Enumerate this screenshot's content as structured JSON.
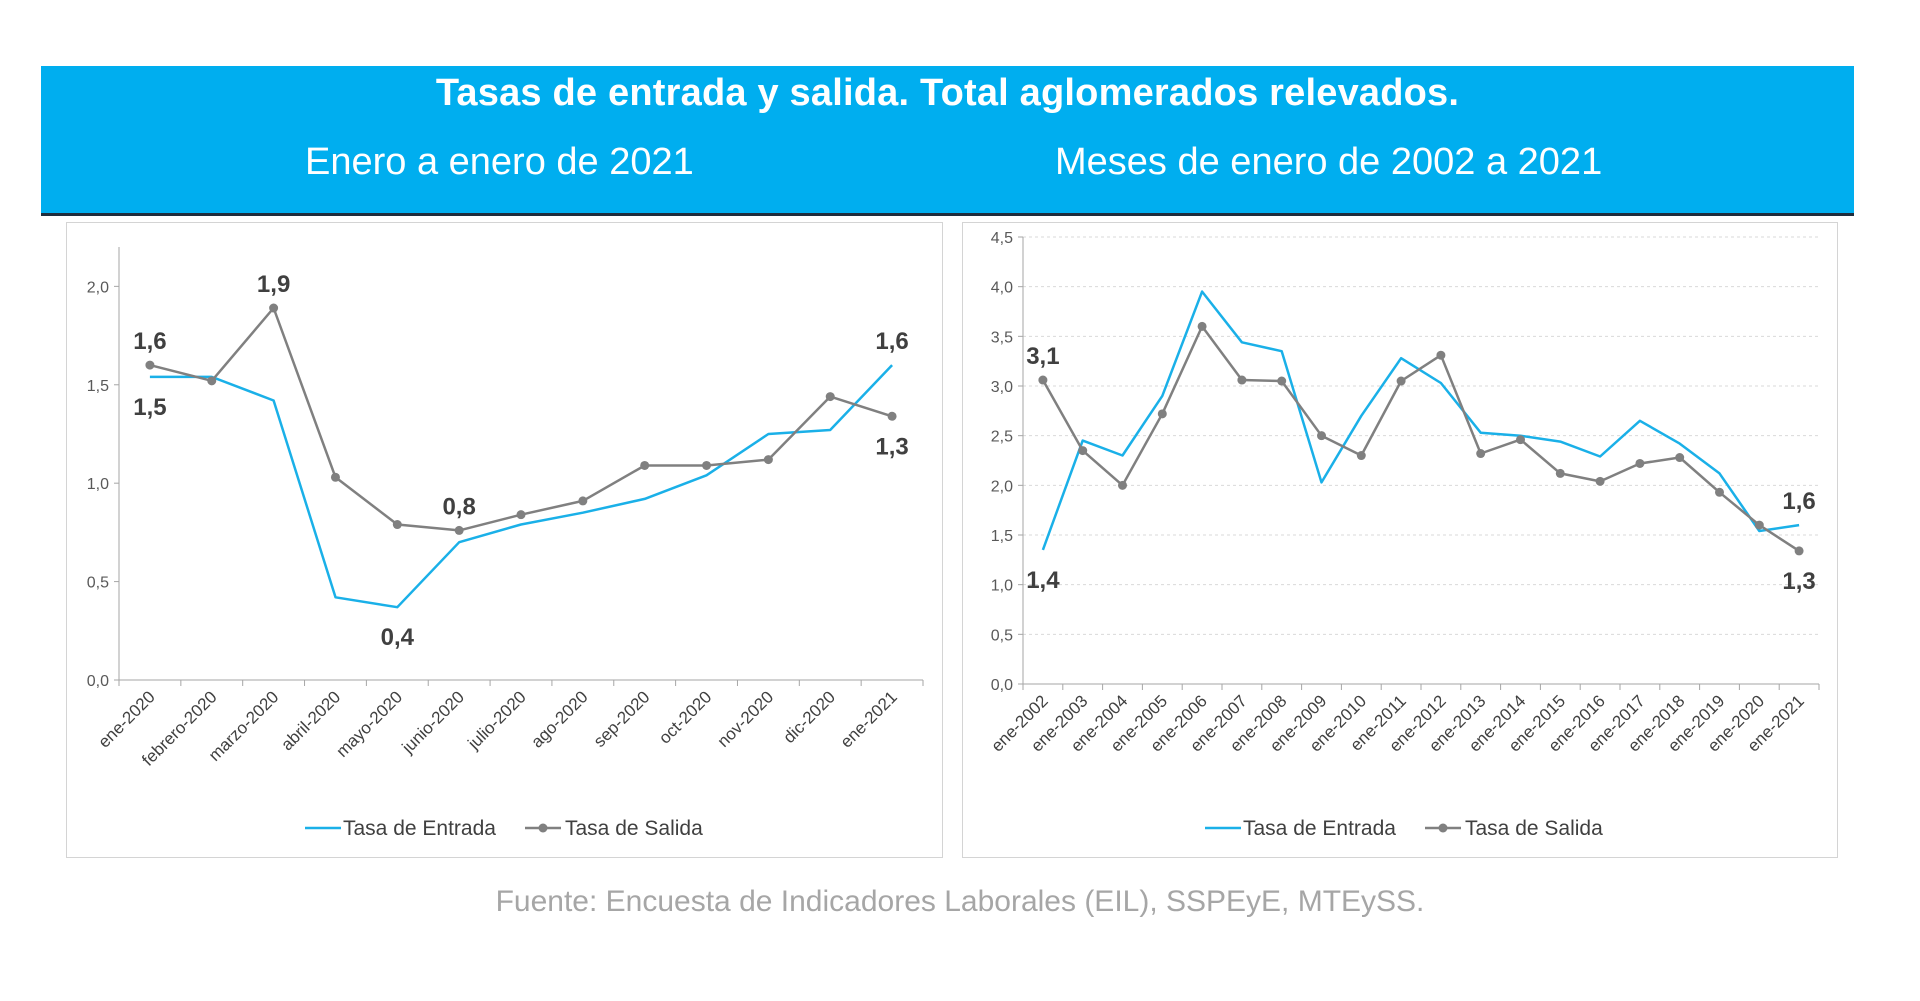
{
  "header": {
    "title": "Tasas de entrada y salida. Total aglomerados relevados.",
    "subtitle_left": "Enero a enero de 2021",
    "subtitle_right": "Meses de enero de 2002 a 2021"
  },
  "source": "Fuente: Encuesta de Indicadores Laborales (EIL), SSPEyE, MTEySS.",
  "colors": {
    "banner": "#00aeef",
    "entrada": "#1ab0e8",
    "salida": "#808080"
  },
  "chart_data": [
    {
      "type": "line",
      "categories": [
        "ene-2020",
        "febrero-2020",
        "marzo-2020",
        "abril-2020",
        "mayo-2020",
        "junio-2020",
        "julio-2020",
        "ago-2020",
        "sep-2020",
        "oct-2020",
        "nov-2020",
        "dic-2020",
        "ene-2021"
      ],
      "series": [
        {
          "name": "Tasa de Entrada",
          "values": [
            1.54,
            1.54,
            1.42,
            0.42,
            0.37,
            0.7,
            0.79,
            0.85,
            0.92,
            1.04,
            1.25,
            1.27,
            1.6
          ]
        },
        {
          "name": "Tasa de Salida",
          "values": [
            1.6,
            1.52,
            1.89,
            1.03,
            0.79,
            0.76,
            0.84,
            0.91,
            1.09,
            1.09,
            1.12,
            1.44,
            1.34
          ]
        }
      ],
      "ylim": [
        0,
        2.2
      ],
      "yticks": [
        "0,0",
        "0,5",
        "1,0",
        "1,5",
        "2,0"
      ],
      "grid": false,
      "legend": "bottom",
      "data_labels": [
        {
          "text": "1,6",
          "series": 1,
          "index": 0,
          "pos": "above"
        },
        {
          "text": "1,5",
          "series": 0,
          "index": 0,
          "pos": "below"
        },
        {
          "text": "1,9",
          "series": 1,
          "index": 2,
          "pos": "above"
        },
        {
          "text": "0,4",
          "series": 0,
          "index": 4,
          "pos": "below"
        },
        {
          "text": "0,8",
          "series": 1,
          "index": 5,
          "pos": "above"
        },
        {
          "text": "1,6",
          "series": 0,
          "index": 12,
          "pos": "above"
        },
        {
          "text": "1,3",
          "series": 1,
          "index": 12,
          "pos": "below"
        }
      ]
    },
    {
      "type": "line",
      "categories": [
        "ene-2002",
        "ene-2003",
        "ene-2004",
        "ene-2005",
        "ene-2006",
        "ene-2007",
        "ene-2008",
        "ene-2009",
        "ene-2010",
        "ene-2011",
        "ene-2012",
        "ene-2013",
        "ene-2014",
        "ene-2015",
        "ene-2016",
        "ene-2017",
        "ene-2018",
        "ene-2019",
        "ene-2020",
        "ene-2021"
      ],
      "series": [
        {
          "name": "Tasa de Entrada",
          "values": [
            1.35,
            2.45,
            2.3,
            2.9,
            3.95,
            3.44,
            3.35,
            2.03,
            2.7,
            3.28,
            3.03,
            2.53,
            2.5,
            2.44,
            2.29,
            2.65,
            2.42,
            2.12,
            1.54,
            1.6
          ]
        },
        {
          "name": "Tasa de Salida",
          "values": [
            3.06,
            2.35,
            2.0,
            2.72,
            3.6,
            3.06,
            3.05,
            2.5,
            2.3,
            3.05,
            3.31,
            2.32,
            2.46,
            2.12,
            2.04,
            2.22,
            2.28,
            1.93,
            1.6,
            1.34
          ]
        }
      ],
      "ylim": [
        0,
        4.5
      ],
      "yticks": [
        "0,0",
        "0,5",
        "1,0",
        "1,5",
        "2,0",
        "2,5",
        "3,0",
        "3,5",
        "4,0",
        "4,5"
      ],
      "grid": true,
      "legend": "bottom",
      "data_labels": [
        {
          "text": "3,1",
          "series": 1,
          "index": 0,
          "pos": "above"
        },
        {
          "text": "1,4",
          "series": 0,
          "index": 0,
          "pos": "below"
        },
        {
          "text": "1,6",
          "series": 0,
          "index": 19,
          "pos": "above"
        },
        {
          "text": "1,3",
          "series": 1,
          "index": 19,
          "pos": "below"
        }
      ]
    }
  ]
}
